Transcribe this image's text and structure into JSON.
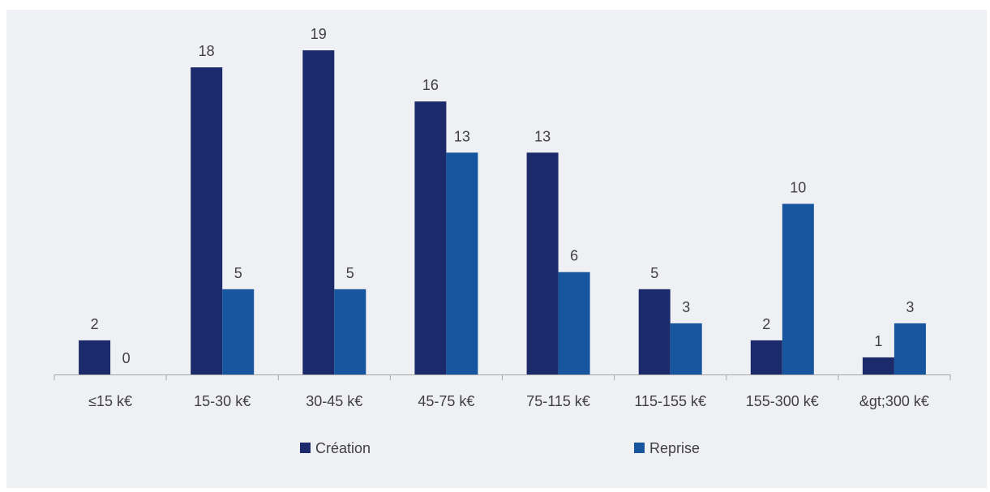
{
  "chart_data": {
    "type": "bar",
    "title": "",
    "xlabel": "",
    "ylabel": "",
    "categories": [
      "≤15 k€",
      "15-30 k€",
      "30-45 k€",
      "45-75 k€",
      "75-115 k€",
      "115-155 k€",
      "155-300 k€",
      "&gt;300 k€"
    ],
    "series": [
      {
        "name": "Création",
        "values": [
          2,
          18,
          19,
          16,
          13,
          5,
          2,
          1
        ],
        "color": "#1b2a6b"
      },
      {
        "name": "Reprise",
        "values": [
          0,
          5,
          5,
          13,
          6,
          3,
          10,
          3
        ],
        "color": "#18559f"
      }
    ],
    "ylim": [
      0,
      20
    ],
    "grid": false,
    "data_labels": true,
    "legend_position": "bottom"
  }
}
